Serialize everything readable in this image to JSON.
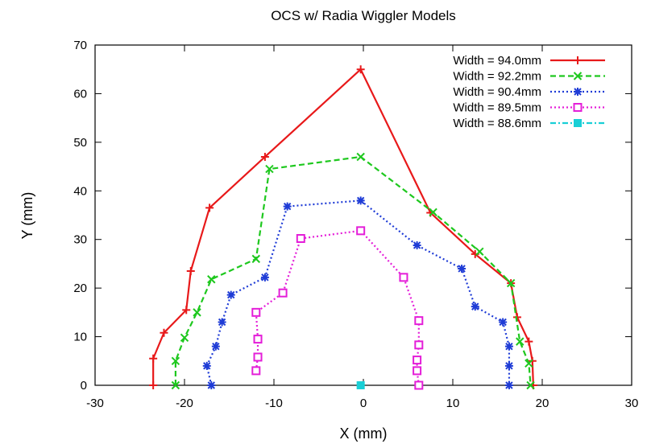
{
  "chart_data": {
    "type": "line",
    "title": "OCS w/ Radia Wiggler Models",
    "xlabel": "X (mm)",
    "ylabel": "Y (mm)",
    "xlim": [
      -30,
      30
    ],
    "ylim": [
      0,
      70
    ],
    "xticks": [
      -30,
      -20,
      -10,
      0,
      10,
      20,
      30
    ],
    "yticks": [
      0,
      10,
      20,
      30,
      40,
      50,
      60,
      70
    ],
    "legend_position": "top-right",
    "grid": false,
    "series": [
      {
        "name": "Width = 94.0mm",
        "color": "#e8191a",
        "dash": "solid",
        "marker": "plus",
        "points": [
          [
            -23.5,
            0
          ],
          [
            -23.5,
            5.5
          ],
          [
            -22.3,
            10.8
          ],
          [
            -19.8,
            15.5
          ],
          [
            -19.3,
            23.5
          ],
          [
            -17.2,
            36.5
          ],
          [
            -11.0,
            47.0
          ],
          [
            -0.3,
            65.0
          ],
          [
            7.5,
            35.5
          ],
          [
            12.5,
            27.0
          ],
          [
            16.5,
            21.0
          ],
          [
            17.2,
            14.0
          ],
          [
            18.5,
            9.0
          ],
          [
            18.9,
            5.0
          ],
          [
            19.0,
            0
          ]
        ]
      },
      {
        "name": "Width = 92.2mm",
        "color": "#1ec81e",
        "dash": "dashed",
        "marker": "x",
        "points": [
          [
            -21.0,
            0
          ],
          [
            -21.0,
            5.0
          ],
          [
            -20.0,
            9.8
          ],
          [
            -18.6,
            15.0
          ],
          [
            -17.0,
            21.8
          ],
          [
            -12.0,
            26.0
          ],
          [
            -10.5,
            44.5
          ],
          [
            -0.3,
            47.0
          ],
          [
            7.8,
            35.6
          ],
          [
            13.0,
            27.5
          ],
          [
            16.5,
            21.0
          ],
          [
            17.5,
            9.0
          ],
          [
            18.5,
            4.5
          ],
          [
            18.7,
            0
          ]
        ]
      },
      {
        "name": "Width = 90.4mm",
        "color": "#1f3cd6",
        "dash": "dotted",
        "marker": "star",
        "points": [
          [
            -17.0,
            0
          ],
          [
            -17.5,
            4.0
          ],
          [
            -16.5,
            8.0
          ],
          [
            -15.8,
            13.0
          ],
          [
            -14.8,
            18.6
          ],
          [
            -11.0,
            22.2
          ],
          [
            -8.5,
            36.8
          ],
          [
            -0.3,
            38.0
          ],
          [
            6.0,
            28.8
          ],
          [
            11.0,
            24.0
          ],
          [
            12.5,
            16.2
          ],
          [
            15.6,
            13.0
          ],
          [
            16.3,
            8.0
          ],
          [
            16.3,
            4.0
          ],
          [
            16.3,
            0
          ]
        ]
      },
      {
        "name": "Width = 89.5mm",
        "color": "#e41ed8",
        "dash": "dotted",
        "marker": "square",
        "points": [
          [
            -12.0,
            3.0
          ],
          [
            -11.8,
            5.8
          ],
          [
            -11.8,
            9.5
          ],
          [
            -12.0,
            15.0
          ],
          [
            -9.0,
            19.0
          ],
          [
            -7.0,
            30.2
          ],
          [
            -0.3,
            31.8
          ],
          [
            4.5,
            22.2
          ],
          [
            6.2,
            13.3
          ],
          [
            6.2,
            8.3
          ],
          [
            6.0,
            5.2
          ],
          [
            6.0,
            3.0
          ],
          [
            6.2,
            0
          ]
        ]
      },
      {
        "name": "Width = 88.6mm",
        "color": "#19cfd6",
        "dash": "dashdot",
        "marker": "filled-square",
        "points": [
          [
            -0.3,
            0
          ]
        ]
      }
    ]
  }
}
